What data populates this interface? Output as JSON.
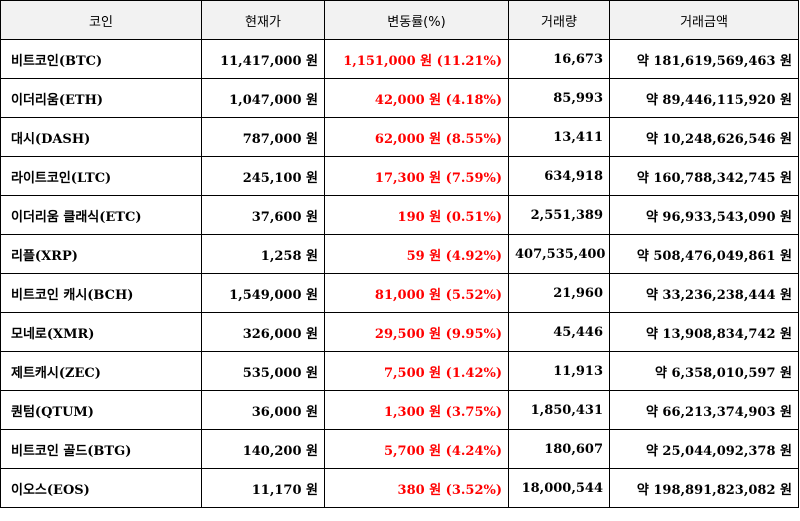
{
  "headers": [
    "코인",
    "현재가",
    "변동률(%)",
    "거래량",
    "거래금액"
  ],
  "rows": [
    {
      "name": "비트코인(BTC)",
      "price": "11,417,000 원",
      "change": "1,151,000 원 (11.21%)",
      "volume": "16,673",
      "amount": "약 181,619,569,463 원"
    },
    {
      "name": "이더리움(ETH)",
      "price": "1,047,000 원",
      "change": "42,000 원 (4.18%)",
      "volume": "85,993",
      "amount": "약 89,446,115,920 원"
    },
    {
      "name": "대시(DASH)",
      "price": "787,000 원",
      "change": "62,000 원 (8.55%)",
      "volume": "13,411",
      "amount": "약 10,248,626,546 원"
    },
    {
      "name": "라이트코인(LTC)",
      "price": "245,100 원",
      "change": "17,300 원 (7.59%)",
      "volume": "634,918",
      "amount": "약 160,788,342,745 원"
    },
    {
      "name": "이더리움 클래식(ETC)",
      "price": "37,600 원",
      "change": "190 원 (0.51%)",
      "volume": "2,551,389",
      "amount": "약 96,933,543,090 원"
    },
    {
      "name": "리플(XRP)",
      "price": "1,258 원",
      "change": "59 원 (4.92%)",
      "volume": "407,535,400",
      "amount": "약 508,476,049,861 원"
    },
    {
      "name": "비트코인 캐시(BCH)",
      "price": "1,549,000 원",
      "change": "81,000 원 (5.52%)",
      "volume": "21,960",
      "amount": "약 33,236,238,444 원"
    },
    {
      "name": "모네로(XMR)",
      "price": "326,000 원",
      "change": "29,500 원 (9.95%)",
      "volume": "45,446",
      "amount": "약 13,908,834,742 원"
    },
    {
      "name": "제트캐시(ZEC)",
      "price": "535,000 원",
      "change": "7,500 원 (1.42%)",
      "volume": "11,913",
      "amount": "약 6,358,010,597 원"
    },
    {
      "name": "퀀텀(QTUM)",
      "price": "36,000 원",
      "change": "1,300 원 (3.75%)",
      "volume": "1,850,431",
      "amount": "약 66,213,374,903 원"
    },
    {
      "name": "비트코인 골드(BTG)",
      "price": "140,200 원",
      "change": "5,700 원 (4.24%)",
      "volume": "180,607",
      "amount": "약 25,044,092,378 원"
    },
    {
      "name": "이오스(EOS)",
      "price": "11,170 원",
      "change": "380 원 (3.52%)",
      "volume": "18,000,544",
      "amount": "약 198,891,823,082 원"
    }
  ],
  "colors": {
    "change": "#ff0000",
    "header_bg": "#f2f2f2",
    "border": "#000000"
  }
}
